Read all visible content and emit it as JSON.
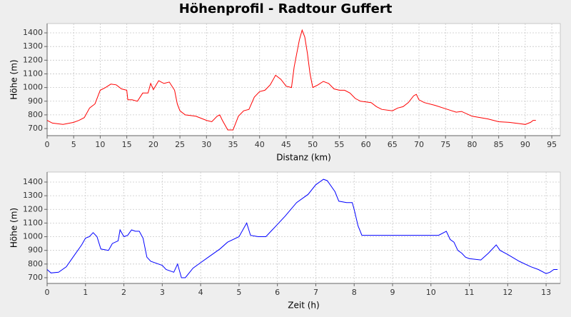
{
  "title": "Höhenprofil - Radtour Guffert",
  "chart_data": [
    {
      "type": "line",
      "xlabel": "Distanz (km)",
      "ylabel": "Höhe (m)",
      "color": "#ff0000",
      "grid": true,
      "xlim": [
        0,
        96.6
      ],
      "ylim": [
        648,
        1468
      ],
      "xticks": [
        0,
        5,
        10,
        15,
        20,
        25,
        30,
        35,
        40,
        45,
        50,
        55,
        60,
        65,
        70,
        75,
        80,
        85,
        90,
        95
      ],
      "yticks": [
        700,
        800,
        900,
        1000,
        1100,
        1200,
        1300,
        1400
      ],
      "x": [
        0,
        1,
        3,
        5,
        6,
        7,
        8,
        9,
        10,
        11,
        12,
        13,
        14,
        15,
        15.2,
        16,
        17,
        18,
        19,
        19.5,
        20,
        21,
        22,
        23,
        24,
        24.5,
        25,
        26,
        28,
        30,
        31,
        32,
        32.5,
        33,
        34,
        35,
        36,
        37,
        38,
        39,
        40,
        41,
        42,
        43,
        44,
        45,
        46,
        46.5,
        47,
        47.5,
        48,
        48.5,
        49,
        49.5,
        50,
        51,
        52,
        53,
        54,
        55,
        56,
        57,
        58,
        59,
        61,
        62,
        63,
        65,
        66,
        67,
        68,
        69,
        69.5,
        70,
        71,
        73,
        75,
        77,
        78,
        80,
        83,
        85,
        87,
        89,
        90,
        91,
        91.5,
        92
      ],
      "values": [
        760,
        740,
        730,
        745,
        760,
        780,
        850,
        880,
        980,
        1000,
        1025,
        1020,
        990,
        980,
        910,
        910,
        900,
        960,
        960,
        1030,
        985,
        1050,
        1030,
        1040,
        980,
        880,
        830,
        800,
        790,
        760,
        750,
        790,
        800,
        760,
        690,
        690,
        790,
        830,
        840,
        930,
        970,
        980,
        1020,
        1090,
        1060,
        1010,
        1000,
        1150,
        1250,
        1350,
        1420,
        1370,
        1250,
        1100,
        1000,
        1020,
        1045,
        1030,
        990,
        980,
        980,
        960,
        920,
        900,
        890,
        860,
        840,
        830,
        850,
        860,
        890,
        940,
        950,
        910,
        890,
        870,
        845,
        820,
        825,
        790,
        770,
        750,
        745,
        735,
        730,
        745,
        760,
        760
      ]
    },
    {
      "type": "line",
      "xlabel": "Zeit (h)",
      "ylabel": "Höhe (m)",
      "color": "#0000ff",
      "grid": true,
      "xlim": [
        0,
        13.37
      ],
      "ylim": [
        658,
        1473
      ],
      "xticks": [
        0,
        1,
        2,
        3,
        4,
        5,
        6,
        7,
        8,
        9,
        10,
        11,
        12,
        13
      ],
      "yticks": [
        700,
        800,
        900,
        1000,
        1100,
        1200,
        1300,
        1400
      ],
      "x": [
        0,
        0.1,
        0.3,
        0.5,
        0.7,
        0.9,
        1,
        1.1,
        1.2,
        1.3,
        1.4,
        1.6,
        1.7,
        1.85,
        1.9,
        2,
        2.1,
        2.2,
        2.3,
        2.4,
        2.5,
        2.6,
        2.7,
        2.9,
        3,
        3.1,
        3.3,
        3.4,
        3.5,
        3.6,
        3.8,
        4,
        4.2,
        4.5,
        4.7,
        5,
        5.2,
        5.3,
        5.5,
        5.7,
        6,
        6.2,
        6.5,
        6.8,
        7,
        7.2,
        7.3,
        7.5,
        7.6,
        7.8,
        7.95,
        8,
        8.1,
        8.2,
        9,
        10.2,
        10.4,
        10.5,
        10.6,
        10.7,
        10.8,
        10.9,
        11,
        11.3,
        11.5,
        11.7,
        11.8,
        12,
        12.3,
        12.6,
        12.8,
        13,
        13.1,
        13.2,
        13.3
      ],
      "values": [
        760,
        735,
        740,
        780,
        860,
        940,
        990,
        1000,
        1030,
        1000,
        910,
        900,
        950,
        970,
        1050,
        1000,
        1010,
        1050,
        1040,
        1040,
        990,
        850,
        820,
        800,
        790,
        760,
        740,
        800,
        700,
        700,
        770,
        810,
        850,
        910,
        960,
        1000,
        1100,
        1010,
        1000,
        1000,
        1090,
        1150,
        1250,
        1310,
        1380,
        1420,
        1410,
        1330,
        1260,
        1250,
        1250,
        1200,
        1080,
        1010,
        1010,
        1010,
        1040,
        980,
        960,
        900,
        880,
        850,
        840,
        830,
        880,
        940,
        900,
        870,
        820,
        780,
        760,
        730,
        740,
        760,
        760
      ]
    }
  ]
}
